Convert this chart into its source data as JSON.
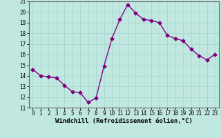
{
  "x": [
    0,
    1,
    2,
    3,
    4,
    5,
    6,
    7,
    8,
    9,
    10,
    11,
    12,
    13,
    14,
    15,
    16,
    17,
    18,
    19,
    20,
    21,
    22,
    23
  ],
  "y": [
    14.6,
    14.0,
    13.9,
    13.8,
    13.1,
    12.5,
    12.4,
    11.5,
    11.9,
    14.9,
    17.5,
    19.3,
    20.7,
    19.9,
    19.3,
    19.2,
    19.0,
    17.8,
    17.5,
    17.3,
    16.5,
    15.9,
    15.5,
    16.0
  ],
  "color": "#800080",
  "bg_color": "#c0e8e0",
  "grid_color": "#a8d8d0",
  "xlabel": "Windchill (Refroidissement éolien,°C)",
  "ylim": [
    11,
    21
  ],
  "xlim": [
    -0.5,
    23.5
  ],
  "yticks": [
    11,
    12,
    13,
    14,
    15,
    16,
    17,
    18,
    19,
    20,
    21
  ],
  "xticks": [
    0,
    1,
    2,
    3,
    4,
    5,
    6,
    7,
    8,
    9,
    10,
    11,
    12,
    13,
    14,
    15,
    16,
    17,
    18,
    19,
    20,
    21,
    22,
    23
  ],
  "marker": "D",
  "markersize": 2.5,
  "linewidth": 1.0,
  "xlabel_fontsize": 6.5,
  "tick_fontsize": 5.5
}
